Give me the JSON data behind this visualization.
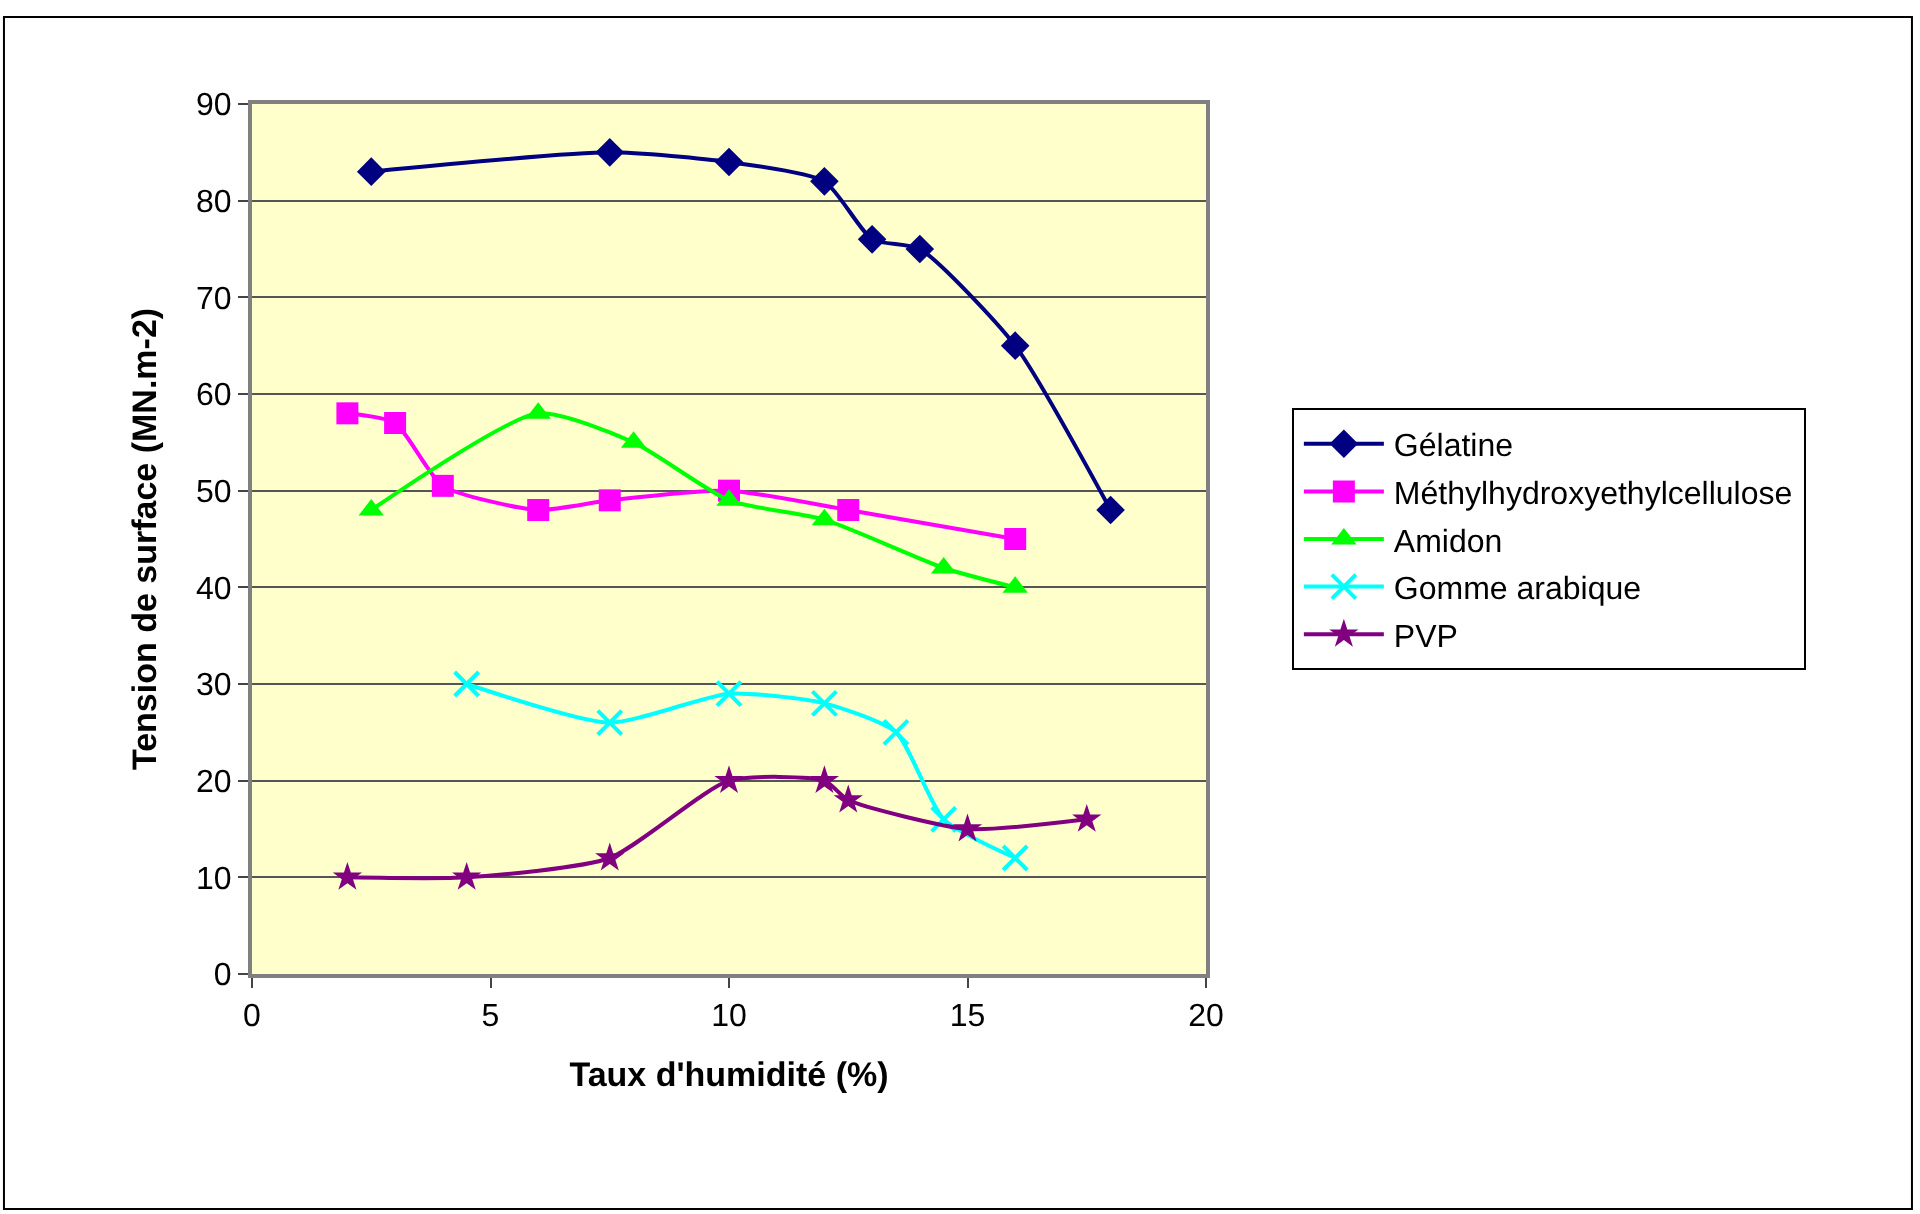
{
  "chart_data": {
    "type": "line",
    "xlabel": "Taux d'humidité (%)",
    "ylabel": "Tension de surface (MN.m-2)",
    "xlim": [
      0,
      20
    ],
    "xticks": [
      0,
      5,
      10,
      15,
      20
    ],
    "ylim": [
      0,
      90
    ],
    "yticks": [
      0,
      10,
      20,
      30,
      40,
      50,
      60,
      70,
      80,
      90
    ],
    "grid": "y",
    "legend": "right",
    "series": [
      {
        "name": "Gélatine",
        "color": "#000080",
        "marker": "diamond",
        "x": [
          2.5,
          7.5,
          10,
          12,
          13,
          14,
          16,
          18
        ],
        "values": [
          83,
          85,
          84,
          82,
          76,
          75,
          65,
          48
        ]
      },
      {
        "name": "Méthylhydroxyethylcellulose",
        "color": "#ff00ff",
        "marker": "square",
        "x": [
          2,
          3,
          4,
          6,
          7.5,
          10,
          12.5,
          16
        ],
        "values": [
          58,
          57,
          50.5,
          48,
          49,
          50,
          48,
          45
        ]
      },
      {
        "name": "Amidon",
        "color": "#00ff00",
        "marker": "triangle",
        "x": [
          2.5,
          6,
          8,
          10,
          12,
          14.5,
          16
        ],
        "values": [
          48,
          58,
          55,
          49,
          47,
          42,
          40
        ]
      },
      {
        "name": "Gomme arabique",
        "color": "#00ffff",
        "marker": "cross",
        "x": [
          4.5,
          7.5,
          10,
          12,
          13.5,
          14.5,
          16
        ],
        "values": [
          30,
          26,
          29,
          28,
          25,
          16,
          12
        ]
      },
      {
        "name": "PVP",
        "color": "#800080",
        "marker": "star",
        "x": [
          2,
          4.5,
          7.5,
          10,
          12,
          12.5,
          15,
          17.5
        ],
        "values": [
          10,
          10,
          12,
          20,
          20,
          18,
          15,
          16
        ]
      }
    ]
  }
}
